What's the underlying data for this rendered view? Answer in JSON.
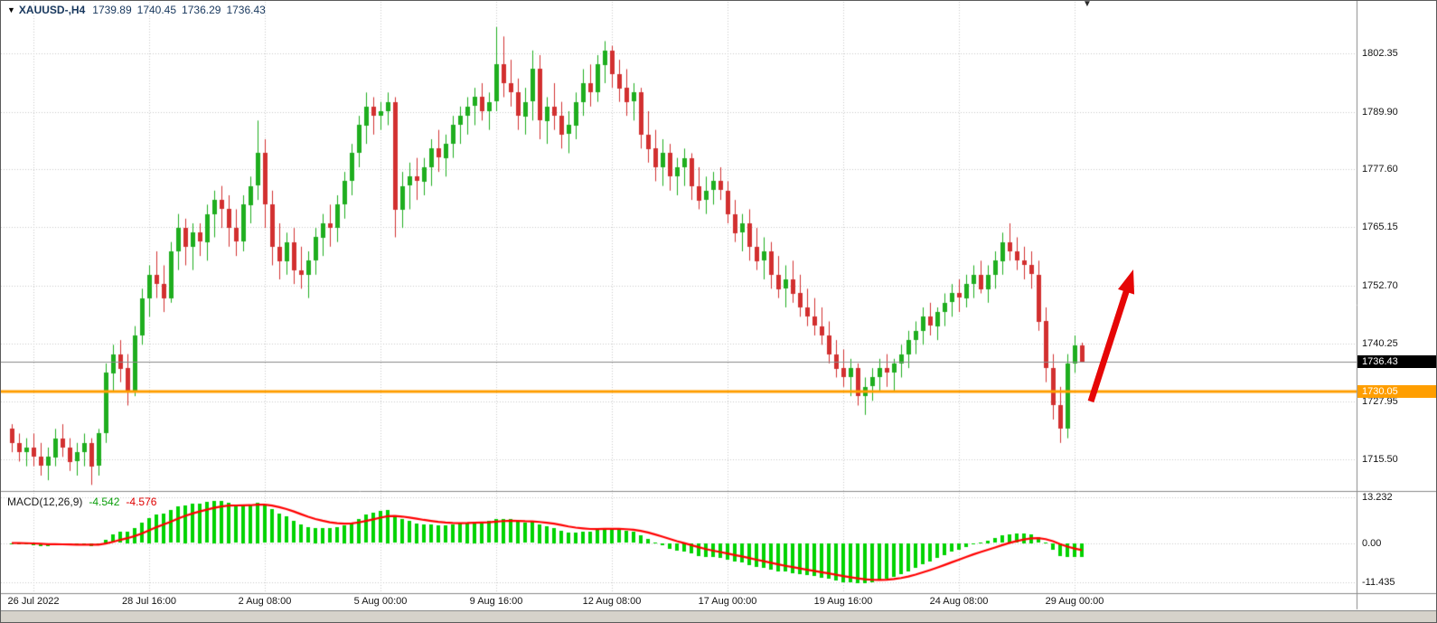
{
  "header": {
    "collapse_icon": "▼",
    "symbol_period": "XAUUSD-,H4",
    "ohlc": {
      "open": "1739.89",
      "high": "1740.45",
      "low": "1736.29",
      "close": "1736.43"
    }
  },
  "chart_data": {
    "type": "candlestick",
    "symbol": "XAUUSD-",
    "timeframe": "H4",
    "price_axis": {
      "min": 1708.9,
      "max": 1810.9,
      "labels": [
        {
          "text": "1802.35",
          "value": 1802.35
        },
        {
          "text": "1789.90",
          "value": 1789.9
        },
        {
          "text": "1777.60",
          "value": 1777.6
        },
        {
          "text": "1765.15",
          "value": 1765.15
        },
        {
          "text": "1752.70",
          "value": 1752.7
        },
        {
          "text": "1740.25",
          "value": 1740.25
        },
        {
          "text": "1727.95",
          "value": 1727.95
        },
        {
          "text": "1715.50",
          "value": 1715.5
        }
      ]
    },
    "time_axis": {
      "labels": [
        {
          "text": "26 Jul 2022",
          "bar": 3
        },
        {
          "text": "28 Jul 16:00",
          "bar": 19
        },
        {
          "text": "2 Aug 08:00",
          "bar": 35
        },
        {
          "text": "5 Aug 00:00",
          "bar": 51
        },
        {
          "text": "9 Aug 16:00",
          "bar": 67
        },
        {
          "text": "12 Aug 08:00",
          "bar": 83
        },
        {
          "text": "17 Aug 00:00",
          "bar": 99
        },
        {
          "text": "19 Aug 16:00",
          "bar": 115
        },
        {
          "text": "24 Aug 08:00",
          "bar": 131
        },
        {
          "text": "29 Aug 00:00",
          "bar": 147
        }
      ]
    },
    "current_price": {
      "text": "1736.43",
      "value": 1736.43
    },
    "horizontal_line": {
      "text": "1730.05",
      "value": 1730.05,
      "color": "#ff9e00"
    },
    "annotations": {
      "arrow": {
        "tail": [
          1206,
          443
        ],
        "tip": [
          1253,
          297
        ],
        "color": "#e60606"
      },
      "shift_marker": "▼"
    },
    "colors": {
      "bull": "#1fae1f",
      "bear": "#d23030",
      "grid": "#c9c9c9",
      "macd_hist": "#00d300",
      "macd_signal": "#ff0000",
      "current_line": "#8a8a8a"
    },
    "macd_panel": {
      "type": "macd",
      "label": "MACD(12,26,9)",
      "params": [
        12,
        26,
        9
      ],
      "value_main": "-4.542",
      "value_signal": "-4.576",
      "range": [
        -14.3,
        14.3
      ],
      "scale_labels": [
        {
          "text": "13.232",
          "value": 13.232
        },
        {
          "text": "0.00",
          "value": 0
        },
        {
          "text": "-11.435",
          "value": -11.435
        }
      ]
    },
    "candles": [
      [
        1722,
        1723,
        1717,
        1719
      ],
      [
        1719,
        1721,
        1715,
        1717
      ],
      [
        1717,
        1720,
        1714,
        1718
      ],
      [
        1718,
        1721,
        1714,
        1716
      ],
      [
        1716,
        1719,
        1712,
        1714
      ],
      [
        1714,
        1718,
        1711,
        1716
      ],
      [
        1716,
        1722,
        1714,
        1720
      ],
      [
        1720,
        1723,
        1716,
        1718
      ],
      [
        1718,
        1720,
        1713,
        1715
      ],
      [
        1715,
        1719,
        1712,
        1717
      ],
      [
        1717,
        1721,
        1714,
        1719
      ],
      [
        1719,
        1720,
        1710,
        1714
      ],
      [
        1714,
        1722,
        1712,
        1721
      ],
      [
        1721,
        1736,
        1719,
        1734
      ],
      [
        1734,
        1740,
        1730,
        1738
      ],
      [
        1738,
        1741,
        1732,
        1735
      ],
      [
        1735,
        1738,
        1727,
        1730
      ],
      [
        1730,
        1744,
        1729,
        1742
      ],
      [
        1742,
        1752,
        1740,
        1750
      ],
      [
        1750,
        1757,
        1746,
        1755
      ],
      [
        1755,
        1760,
        1750,
        1753
      ],
      [
        1753,
        1757,
        1747,
        1750
      ],
      [
        1750,
        1762,
        1749,
        1760
      ],
      [
        1760,
        1768,
        1756,
        1765
      ],
      [
        1765,
        1767,
        1757,
        1761
      ],
      [
        1761,
        1766,
        1756,
        1764
      ],
      [
        1764,
        1766,
        1759,
        1762
      ],
      [
        1762,
        1770,
        1758,
        1768
      ],
      [
        1768,
        1773,
        1763,
        1771
      ],
      [
        1771,
        1774,
        1765,
        1769
      ],
      [
        1769,
        1772,
        1761,
        1765
      ],
      [
        1765,
        1769,
        1759,
        1762
      ],
      [
        1762,
        1772,
        1760,
        1770
      ],
      [
        1770,
        1776,
        1766,
        1774
      ],
      [
        1774,
        1788,
        1771,
        1781
      ],
      [
        1781,
        1784,
        1765,
        1770
      ],
      [
        1770,
        1773,
        1757,
        1761
      ],
      [
        1761,
        1766,
        1754,
        1758
      ],
      [
        1758,
        1764,
        1755,
        1762
      ],
      [
        1762,
        1765,
        1753,
        1756
      ],
      [
        1756,
        1761,
        1752,
        1755
      ],
      [
        1755,
        1760,
        1750,
        1758
      ],
      [
        1758,
        1765,
        1755,
        1763
      ],
      [
        1763,
        1768,
        1759,
        1766
      ],
      [
        1766,
        1770,
        1761,
        1765
      ],
      [
        1765,
        1772,
        1762,
        1770
      ],
      [
        1770,
        1777,
        1767,
        1775
      ],
      [
        1775,
        1783,
        1772,
        1781
      ],
      [
        1781,
        1789,
        1778,
        1787
      ],
      [
        1787,
        1794,
        1783,
        1791
      ],
      [
        1791,
        1793,
        1785,
        1789
      ],
      [
        1789,
        1792,
        1786,
        1790
      ],
      [
        1790,
        1794,
        1787,
        1792
      ],
      [
        1792,
        1793,
        1763,
        1769
      ],
      [
        1769,
        1777,
        1765,
        1774
      ],
      [
        1774,
        1779,
        1769,
        1776
      ],
      [
        1776,
        1780,
        1771,
        1775
      ],
      [
        1775,
        1780,
        1772,
        1778
      ],
      [
        1778,
        1784,
        1774,
        1782
      ],
      [
        1782,
        1786,
        1777,
        1780
      ],
      [
        1780,
        1785,
        1776,
        1783
      ],
      [
        1783,
        1789,
        1780,
        1787
      ],
      [
        1787,
        1791,
        1783,
        1789
      ],
      [
        1789,
        1793,
        1785,
        1791
      ],
      [
        1791,
        1795,
        1787,
        1793
      ],
      [
        1793,
        1796,
        1788,
        1790
      ],
      [
        1790,
        1794,
        1786,
        1792
      ],
      [
        1792,
        1808,
        1790,
        1800
      ],
      [
        1800,
        1806,
        1793,
        1796
      ],
      [
        1796,
        1801,
        1791,
        1794
      ],
      [
        1794,
        1797,
        1786,
        1789
      ],
      [
        1789,
        1795,
        1785,
        1792
      ],
      [
        1792,
        1803,
        1788,
        1799
      ],
      [
        1799,
        1802,
        1784,
        1788
      ],
      [
        1788,
        1793,
        1783,
        1791
      ],
      [
        1791,
        1796,
        1786,
        1789
      ],
      [
        1789,
        1792,
        1782,
        1785
      ],
      [
        1785,
        1790,
        1781,
        1787
      ],
      [
        1787,
        1794,
        1784,
        1792
      ],
      [
        1792,
        1799,
        1789,
        1796
      ],
      [
        1796,
        1800,
        1791,
        1794
      ],
      [
        1794,
        1802,
        1792,
        1800
      ],
      [
        1800,
        1805,
        1796,
        1803
      ],
      [
        1803,
        1804,
        1795,
        1798
      ],
      [
        1798,
        1801,
        1792,
        1795
      ],
      [
        1795,
        1799,
        1789,
        1792
      ],
      [
        1792,
        1796,
        1788,
        1794
      ],
      [
        1794,
        1795,
        1782,
        1785
      ],
      [
        1785,
        1790,
        1779,
        1782
      ],
      [
        1782,
        1786,
        1775,
        1778
      ],
      [
        1778,
        1784,
        1774,
        1781
      ],
      [
        1781,
        1783,
        1773,
        1776
      ],
      [
        1776,
        1780,
        1772,
        1778
      ],
      [
        1778,
        1782,
        1774,
        1780
      ],
      [
        1780,
        1781,
        1771,
        1774
      ],
      [
        1774,
        1778,
        1769,
        1771
      ],
      [
        1771,
        1776,
        1768,
        1773
      ],
      [
        1773,
        1777,
        1770,
        1775
      ],
      [
        1775,
        1778,
        1771,
        1773
      ],
      [
        1773,
        1775,
        1766,
        1768
      ],
      [
        1768,
        1771,
        1762,
        1764
      ],
      [
        1764,
        1768,
        1760,
        1766
      ],
      [
        1766,
        1769,
        1758,
        1761
      ],
      [
        1761,
        1765,
        1756,
        1758
      ],
      [
        1758,
        1763,
        1754,
        1760
      ],
      [
        1760,
        1762,
        1752,
        1755
      ],
      [
        1755,
        1759,
        1750,
        1752
      ],
      [
        1752,
        1757,
        1748,
        1754
      ],
      [
        1754,
        1758,
        1749,
        1751
      ],
      [
        1751,
        1755,
        1746,
        1748
      ],
      [
        1748,
        1752,
        1744,
        1746
      ],
      [
        1746,
        1750,
        1742,
        1744
      ],
      [
        1744,
        1748,
        1740,
        1742
      ],
      [
        1742,
        1745,
        1736,
        1738
      ],
      [
        1738,
        1741,
        1733,
        1735
      ],
      [
        1735,
        1739,
        1731,
        1733
      ],
      [
        1733,
        1737,
        1729,
        1735
      ],
      [
        1735,
        1736,
        1727,
        1729
      ],
      [
        1729,
        1733,
        1725,
        1731
      ],
      [
        1731,
        1735,
        1728,
        1733
      ],
      [
        1733,
        1737,
        1730,
        1735
      ],
      [
        1735,
        1738,
        1731,
        1734
      ],
      [
        1734,
        1737,
        1730,
        1736
      ],
      [
        1736,
        1740,
        1733,
        1738
      ],
      [
        1738,
        1743,
        1735,
        1741
      ],
      [
        1741,
        1745,
        1738,
        1743
      ],
      [
        1743,
        1748,
        1740,
        1746
      ],
      [
        1746,
        1749,
        1742,
        1744
      ],
      [
        1744,
        1748,
        1741,
        1747
      ],
      [
        1747,
        1751,
        1744,
        1749
      ],
      [
        1749,
        1753,
        1746,
        1751
      ],
      [
        1751,
        1754,
        1747,
        1750
      ],
      [
        1750,
        1755,
        1748,
        1753
      ],
      [
        1753,
        1757,
        1750,
        1755
      ],
      [
        1755,
        1758,
        1751,
        1752
      ],
      [
        1752,
        1757,
        1749,
        1755
      ],
      [
        1755,
        1760,
        1752,
        1758
      ],
      [
        1758,
        1764,
        1755,
        1762
      ],
      [
        1762,
        1766,
        1758,
        1760
      ],
      [
        1760,
        1763,
        1756,
        1758
      ],
      [
        1758,
        1761,
        1754,
        1757
      ],
      [
        1757,
        1760,
        1752,
        1755
      ],
      [
        1755,
        1758,
        1743,
        1745
      ],
      [
        1745,
        1748,
        1732,
        1735
      ],
      [
        1735,
        1738,
        1724,
        1727
      ],
      [
        1727,
        1731,
        1719,
        1722
      ],
      [
        1722,
        1738,
        1720,
        1736
      ],
      [
        1736,
        1742,
        1734,
        1739.89
      ],
      [
        1739.89,
        1740.45,
        1736.29,
        1736.43
      ]
    ]
  }
}
